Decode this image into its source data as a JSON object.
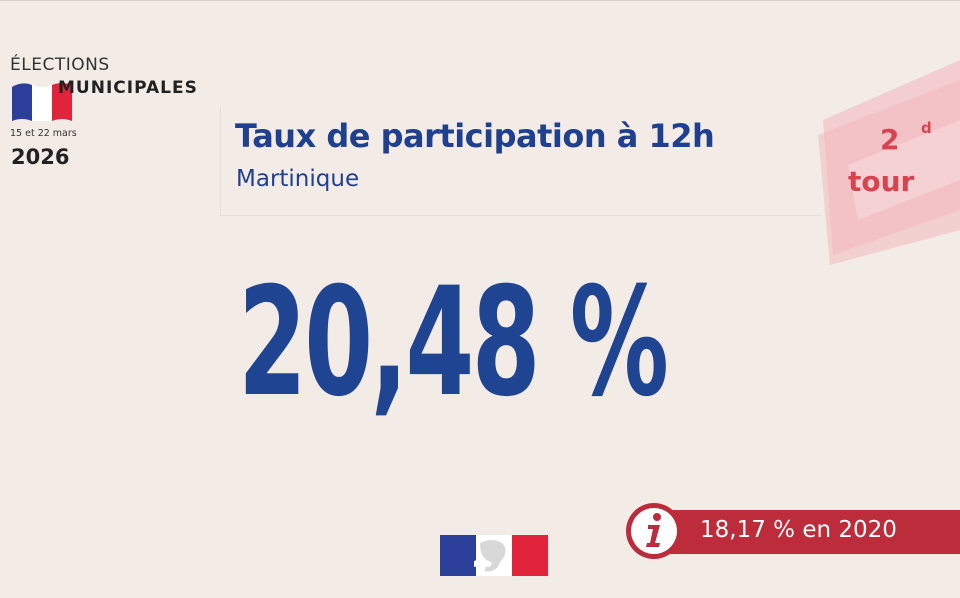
{
  "logo": {
    "line1": "ÉLECTIONS",
    "line2": "MUNICIPALES",
    "dates": "15 et 22 mars",
    "year": "2026"
  },
  "header": {
    "title": "Taux de participation à 12h",
    "subtitle": "Martinique"
  },
  "badge": {
    "number": "2",
    "superscript": "d",
    "word": "tour"
  },
  "main": {
    "rate": "20,48 %"
  },
  "info": {
    "icon": "info-icon",
    "text": "18,17 % en 2020"
  },
  "colors": {
    "background": "#f3ece6",
    "blue": "#1f4592",
    "red": "#bd2c3a",
    "pink": "#f2c6c8"
  }
}
